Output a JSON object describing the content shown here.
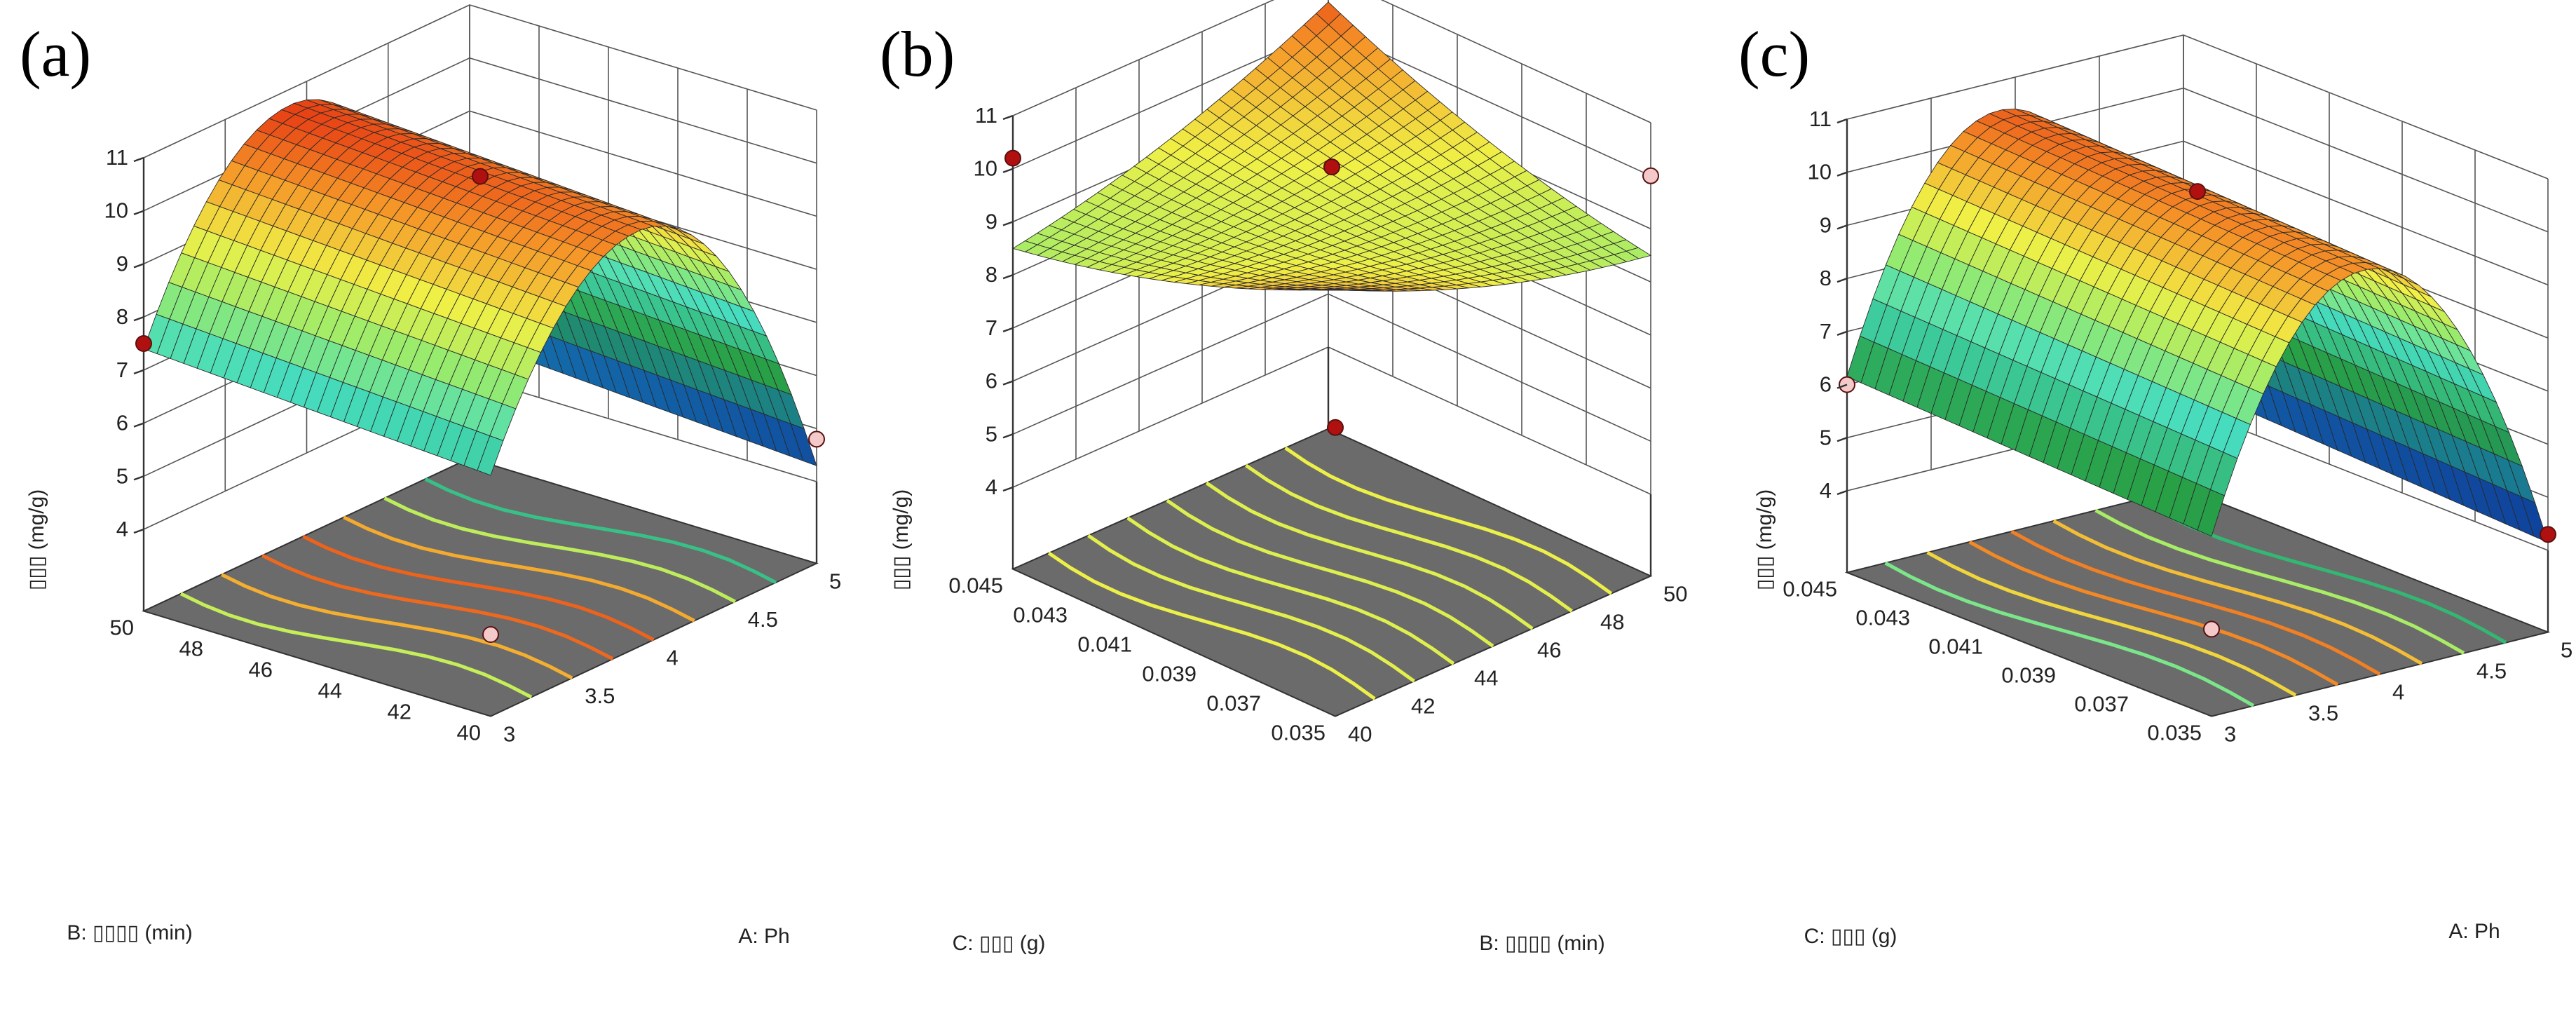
{
  "chart_data": [
    {
      "type": "surface3d",
      "panel_label": "(a)",
      "zlabel": "▯▯▯ (mg/g)",
      "z_ticks": [
        "4",
        "5",
        "6",
        "7",
        "8",
        "9",
        "10",
        "11"
      ],
      "zlim": [
        4,
        11
      ],
      "x_axis": {
        "label": "A: Ph",
        "ticks": [
          "3",
          "3.5",
          "4",
          "4.5",
          "5"
        ],
        "range": [
          3,
          5
        ]
      },
      "y_axis": {
        "label": "B: ▯▯▯▯ (min)",
        "ticks": [
          "40",
          "42",
          "44",
          "46",
          "48",
          "50"
        ],
        "range": [
          40,
          50
        ]
      },
      "surface": {
        "peak_x": 3.9,
        "peak_z": 10.5,
        "z_at_x_min": 7.2,
        "z_at_x_max": 4.5,
        "y_effect": 0.4
      },
      "design_points": [
        {
          "x": 4,
          "y": 45,
          "z": 10.2,
          "color": "#b01010"
        },
        {
          "x": 3,
          "y": 50,
          "z": 7.5,
          "color": "#b01010"
        },
        {
          "x": 5,
          "y": 40,
          "z": 4.8,
          "color": "#f4c9c9"
        },
        {
          "x": 3,
          "y": 40,
          "z": 4.0,
          "color": "#f4c9c9"
        }
      ]
    },
    {
      "type": "surface3d",
      "panel_label": "(b)",
      "zlabel": "▯▯▯ (mg/g)",
      "z_ticks": [
        "4",
        "5",
        "6",
        "7",
        "8",
        "9",
        "10",
        "11"
      ],
      "zlim": [
        4,
        11
      ],
      "x_axis": {
        "label": "B: ▯▯▯▯ (min)",
        "ticks": [
          "40",
          "42",
          "44",
          "46",
          "48",
          "50"
        ],
        "range": [
          40,
          50
        ]
      },
      "y_axis": {
        "label": "C: ▯▯▯ (g)",
        "ticks": [
          "0.035",
          "0.037",
          "0.039",
          "0.041",
          "0.043",
          "0.045"
        ],
        "range": [
          0.035,
          0.045
        ]
      },
      "surface": {
        "center_z": 9.0,
        "saddle": 1.0
      },
      "design_points": [
        {
          "x": 45,
          "y": 0.04,
          "z": 10.1,
          "color": "#b01010"
        },
        {
          "x": 40,
          "y": 0.045,
          "z": 10.2,
          "color": "#b01010"
        },
        {
          "x": 40,
          "y": 0.035,
          "z": 7.9,
          "color": "#b01010"
        },
        {
          "x": 50,
          "y": 0.035,
          "z": 10.0,
          "color": "#f4c9c9"
        }
      ]
    },
    {
      "type": "surface3d",
      "panel_label": "(c)",
      "zlabel": "▯▯▯ (mg/g)",
      "z_ticks": [
        "4",
        "5",
        "6",
        "7",
        "8",
        "9",
        "10",
        "11"
      ],
      "zlim": [
        4,
        11
      ],
      "x_axis": {
        "label": "A: Ph",
        "ticks": [
          "3",
          "3.5",
          "4",
          "4.5",
          "5"
        ],
        "range": [
          3,
          5
        ]
      },
      "y_axis": {
        "label": "C: ▯▯▯ (g)",
        "ticks": [
          "0.035",
          "0.037",
          "0.039",
          "0.041",
          "0.043",
          "0.045"
        ],
        "range": [
          0.035,
          0.045
        ]
      },
      "surface": {
        "peak_x": 3.9,
        "peak_z": 10.3,
        "z_at_x_min": 6.0,
        "z_at_x_max": 4.3,
        "y_effect": 0.3
      },
      "design_points": [
        {
          "x": 4,
          "y": 0.04,
          "z": 10.2,
          "color": "#b01010"
        },
        {
          "x": 3,
          "y": 0.045,
          "z": 6.0,
          "color": "#f4c9c9"
        },
        {
          "x": 3,
          "y": 0.035,
          "z": 4.1,
          "color": "#f4c9c9"
        },
        {
          "x": 5,
          "y": 0.035,
          "z": 4.3,
          "color": "#b01010"
        }
      ]
    }
  ]
}
